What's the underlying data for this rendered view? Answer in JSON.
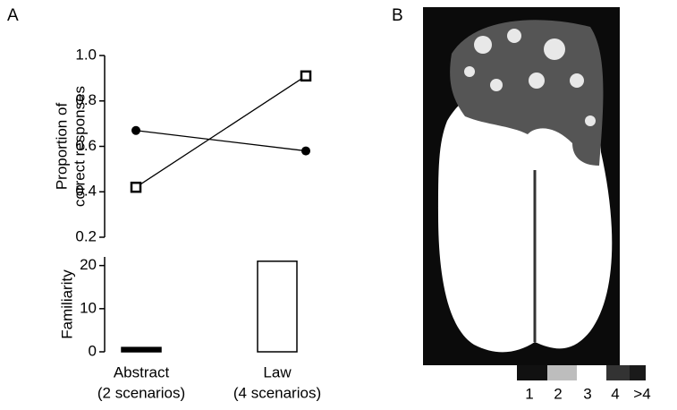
{
  "panel_labels": [
    "A",
    "B"
  ],
  "chart_data": [
    {
      "type": "line",
      "ylabel": [
        "Proportion of",
        "correct responses"
      ],
      "ylim": [
        0.2,
        1.0
      ],
      "yticks": [
        0.2,
        0.4,
        0.6,
        0.8,
        {
          "value": 1.0,
          "label": "1.0"
        }
      ],
      "series": [
        {
          "color": "#000000",
          "marker": "circle",
          "values": [
            0.67,
            0.58
          ]
        },
        {
          "color": "#000000",
          "marker": "square",
          "values": [
            0.42,
            0.91
          ]
        }
      ]
    },
    {
      "type": "bar",
      "ylabel": [
        "Familiarity"
      ],
      "categories": [
        "Abstract",
        "Law"
      ],
      "category_notes": [
        "(2 scenarios)",
        "(4 scenarios)"
      ],
      "ylim": [
        0,
        22
      ],
      "yticks": [
        0,
        10,
        20
      ],
      "colors": [
        "#000000",
        "#ffffff"
      ],
      "values": [
        1,
        21
      ]
    }
  ],
  "brain_legend": {
    "labels": [
      "1",
      "2",
      "3",
      "4",
      ">4"
    ],
    "colors": [
      "#111111",
      "#bdbdbd",
      "#ffffff",
      "#333333",
      "#1a1a1a"
    ]
  }
}
